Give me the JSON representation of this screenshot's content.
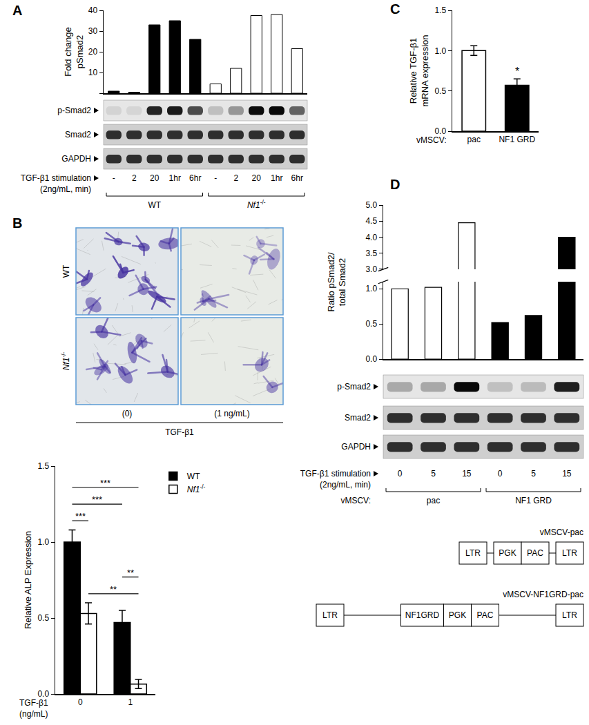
{
  "chart_data": [
    {
      "type": "bar",
      "y_label": "Fold change\npSmad2",
      "categories": [
        null,
        null,
        null,
        null,
        null,
        null,
        null,
        null,
        null,
        null
      ],
      "values": [
        1,
        0.5,
        33,
        35,
        26,
        4.5,
        12,
        37.5,
        38,
        21.5
      ],
      "colors": [
        "#000000",
        "#000000",
        "#000000",
        "#000000",
        "#000000",
        "#ffffff",
        "#ffffff",
        "#ffffff",
        "#ffffff",
        "#ffffff"
      ],
      "ylim": [
        0,
        40
      ],
      "yticks": [
        0,
        10,
        20,
        30,
        40
      ],
      "tick_labels": "y"
    },
    {
      "type": "bar",
      "x_label": "TGF-β1\n(ng/mL)",
      "y_label": "Relative ALP Expression",
      "categories": [
        "0",
        "1"
      ],
      "series": [
        {
          "name": "WT",
          "color": "#000000",
          "values": [
            1.0,
            0.47
          ],
          "errors": [
            0.08,
            0.08
          ]
        },
        {
          "name": "Nf1-/-",
          "color": "#ffffff",
          "values": [
            0.53,
            0.065
          ],
          "errors": [
            0.07,
            0.03
          ]
        }
      ],
      "ylim": [
        0,
        1.5
      ],
      "yticks": [
        {
          "value": 0,
          "label": "0.0"
        },
        {
          "value": 0.5,
          "label": "0.5"
        },
        {
          "value": 1,
          "label": "1.0"
        },
        {
          "value": 1.5,
          "label": "1.5"
        }
      ],
      "legend": "right",
      "annotations": [
        {
          "text": "***",
          "between": [
            {
              "category": "0",
              "series": "WT"
            },
            {
              "category": "0",
              "series": "Nf1-/-"
            }
          ]
        },
        {
          "text": "***",
          "between": [
            {
              "category": "0",
              "series": "WT"
            },
            {
              "category": "1",
              "series": "WT"
            }
          ]
        },
        {
          "text": "***",
          "between": [
            {
              "category": "0",
              "series": "WT"
            },
            {
              "category": "1",
              "series": "Nf1-/-"
            }
          ]
        },
        {
          "text": "**",
          "between": [
            {
              "category": "0",
              "series": "Nf1-/-"
            },
            {
              "category": "1",
              "series": "Nf1-/-"
            }
          ]
        },
        {
          "text": "**",
          "between": [
            {
              "category": "1",
              "series": "WT"
            },
            {
              "category": "1",
              "series": "Nf1-/-"
            }
          ]
        }
      ]
    },
    {
      "type": "bar",
      "x_label": "vMSCV:",
      "y_label": "Relative TGF-β1\nmRNA expression",
      "categories": [
        "pac",
        "NF1 GRD"
      ],
      "values": [
        1.0,
        0.57
      ],
      "errors": [
        0.06,
        0.08
      ],
      "colors": [
        "#ffffff",
        "#000000"
      ],
      "ylim": [
        0,
        1.5
      ],
      "yticks": [
        {
          "value": 0,
          "label": "0.0"
        },
        {
          "value": 0.5,
          "label": "0.5"
        },
        {
          "value": 1,
          "label": "1.0"
        },
        {
          "value": 1.5,
          "label": "1.5"
        }
      ],
      "annotations": [
        {
          "text": "*",
          "category": "NF1 GRD"
        }
      ]
    },
    {
      "type": "bar",
      "y_label": "Ratio pSmad2/\ntotal Smad2",
      "categories": [
        null,
        null,
        null,
        null,
        null,
        null
      ],
      "values": [
        1.0,
        1.02,
        4.45,
        0.52,
        0.62,
        4.0
      ],
      "colors": [
        "#ffffff",
        "#ffffff",
        "#ffffff",
        "#000000",
        "#000000",
        "#000000"
      ],
      "ylim": [
        0,
        5
      ],
      "y_break": [
        1.1,
        3.0
      ],
      "yticks": [
        {
          "value": 0,
          "label": "0.0"
        },
        {
          "value": 0.5,
          "label": "0.5"
        },
        {
          "value": 1,
          "label": "1.0"
        },
        {
          "value": 3,
          "label": "3.0"
        },
        {
          "value": 3.5,
          "label": "3.5"
        },
        {
          "value": 4,
          "label": "4.0"
        },
        {
          "value": 4.5,
          "label": "4.5"
        },
        {
          "value": 5,
          "label": "5.0"
        }
      ],
      "tick_labels": "y"
    }
  ],
  "figure": {
    "panel_labels": [
      "A",
      "B",
      "C",
      "D"
    ],
    "blot_A": {
      "rows": [
        "p-Smad2",
        "Smad2",
        "GAPDH"
      ],
      "stimulation_label": "TGF-β1 stimulation",
      "stimulation_unit": "(2ng/mL, min)",
      "lanes": [
        "-",
        "2",
        "20",
        "1hr",
        "6hr",
        "-",
        "2",
        "20",
        "1hr",
        "6hr"
      ],
      "groups": [
        {
          "label": "WT",
          "lanes": 5
        },
        {
          "label": "Nf1-/-",
          "lanes": 5
        }
      ]
    },
    "micrographs_B": {
      "rows": [
        "WT",
        "Nf1-/-"
      ],
      "columns": [
        "(0)",
        "(1 ng/mL)"
      ],
      "treatment": "TGF-β1"
    },
    "blot_D": {
      "rows": [
        "p-Smad2",
        "Smad2",
        "GAPDH"
      ],
      "stimulation_label": "TGF-β1 stimulation",
      "stimulation_unit": "(2ng/mL, min)",
      "lanes": [
        "0",
        "5",
        "15",
        "0",
        "5",
        "15"
      ],
      "group_prefix": "vMSCV:",
      "groups": [
        {
          "label": "pac",
          "lanes": 3
        },
        {
          "label": "NF1 GRD",
          "lanes": 3
        }
      ]
    },
    "constructs_D": [
      {
        "name": "vMSCV-pac",
        "elements": [
          "LTR",
          "PGK",
          "PAC",
          "LTR"
        ]
      },
      {
        "name": "vMSCV-NF1GRD-pac",
        "elements": [
          "LTR",
          "NF1GRD",
          "PGK",
          "PAC",
          "LTR"
        ]
      }
    ]
  }
}
